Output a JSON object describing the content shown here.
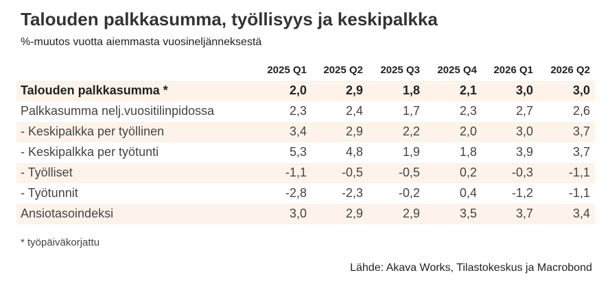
{
  "header": {
    "title": "Talouden palkkasumma, työllisyys ja keskipalkka",
    "subtitle": "%-muutos vuotta aiemmasta vuosineljänneksestä"
  },
  "table": {
    "columns": [
      "2025 Q1",
      "2025 Q2",
      "2025 Q3",
      "2025 Q4",
      "2026 Q1",
      "2026 Q2"
    ],
    "rows": [
      {
        "label": "Talouden palkkasumma *",
        "values": [
          "2,0",
          "2,9",
          "1,8",
          "2,1",
          "3,0",
          "3,0"
        ]
      },
      {
        "label": "Palkkasumma nelj.vuositilinpidossa",
        "values": [
          "2,3",
          "2,4",
          "1,7",
          "2,3",
          "2,7",
          "2,6"
        ]
      },
      {
        "label": "- Keskipalkka per työllinen",
        "values": [
          "3,4",
          "2,9",
          "2,2",
          "2,0",
          "3,0",
          "3,7"
        ]
      },
      {
        "label": "- Keskipalkka per työtunti",
        "values": [
          "5,3",
          "4,8",
          "1,9",
          "1,8",
          "3,9",
          "3,7"
        ]
      },
      {
        "label": "- Työlliset",
        "values": [
          "-1,1",
          "-0,5",
          "-0,5",
          "0,2",
          "-0,3",
          "-1,1"
        ]
      },
      {
        "label": "- Työtunnit",
        "values": [
          "-2,8",
          "-2,3",
          "-0,2",
          "0,4",
          "-1,2",
          "-1,1"
        ]
      },
      {
        "label": "Ansiotasoindeksi",
        "values": [
          "3,0",
          "2,9",
          "2,9",
          "3,5",
          "3,7",
          "3,4"
        ]
      }
    ]
  },
  "footnote": "* työpäiväkorjattu",
  "source": "Lähde: Akava Works, Tilastokeskus ja Macrobond"
}
